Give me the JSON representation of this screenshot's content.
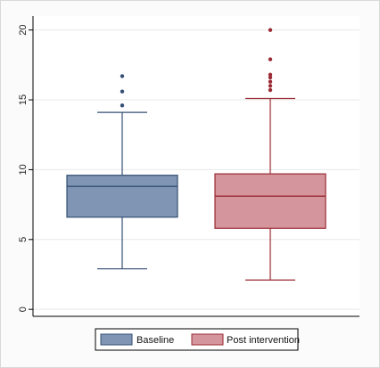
{
  "chart_data": {
    "type": "boxplot",
    "title": "",
    "xlabel": "",
    "ylabel": "",
    "ylim": [
      -0.5,
      21
    ],
    "yticks": [
      0,
      5,
      10,
      15,
      20
    ],
    "grid": true,
    "legend_position": "bottom",
    "series": [
      {
        "name": "Baseline",
        "color": "#7f95b3",
        "edge_color": "#344f73",
        "min": 2.9,
        "q1": 6.6,
        "median": 8.8,
        "q3": 9.6,
        "max": 14.1,
        "outliers": [
          14.6,
          15.6,
          16.7
        ]
      },
      {
        "name": "Post intervention",
        "color": "#d4969c",
        "edge_color": "#9a2a33",
        "min": 2.1,
        "q1": 5.8,
        "median": 8.1,
        "q3": 9.7,
        "max": 15.1,
        "outliers": [
          15.7,
          16.0,
          16.3,
          16.6,
          16.8,
          17.9,
          20.0
        ]
      }
    ]
  }
}
